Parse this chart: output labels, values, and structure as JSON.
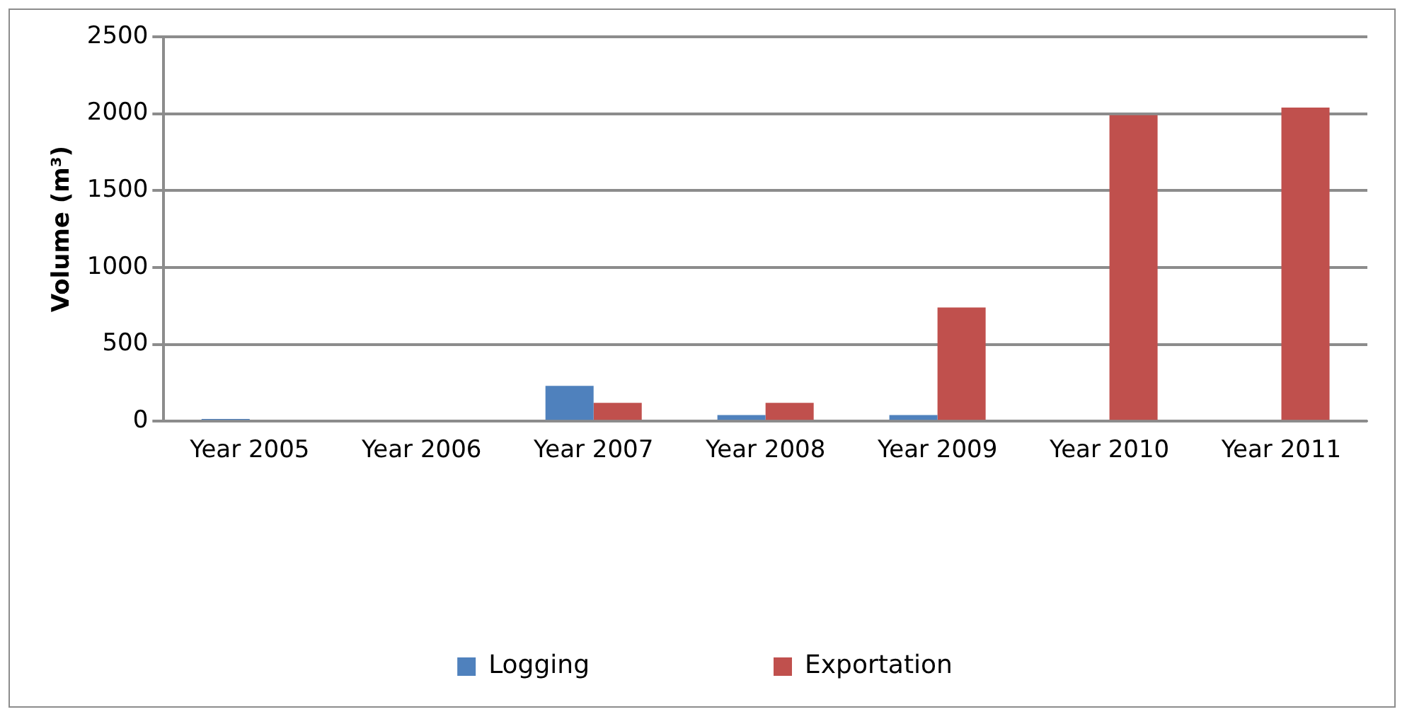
{
  "chart_data": {
    "type": "bar",
    "ylabel": "Volume (m³)",
    "categories": [
      "Year 2005",
      "Year 2006",
      "Year 2007",
      "Year 2008",
      "Year 2009",
      "Year 2010",
      "Year 2011"
    ],
    "series": [
      {
        "name": "Logging",
        "color": "#4f81bd",
        "values": [
          15,
          0,
          230,
          40,
          40,
          0,
          0
        ]
      },
      {
        "name": "Exportation",
        "color": "#c0504d",
        "values": [
          0,
          0,
          120,
          120,
          740,
          1990,
          2040
        ]
      }
    ],
    "ylim": [
      0,
      2500
    ],
    "yticks": [
      0,
      500,
      1000,
      1500,
      2000,
      2500
    ],
    "grid": "y",
    "legend": "bottom"
  }
}
